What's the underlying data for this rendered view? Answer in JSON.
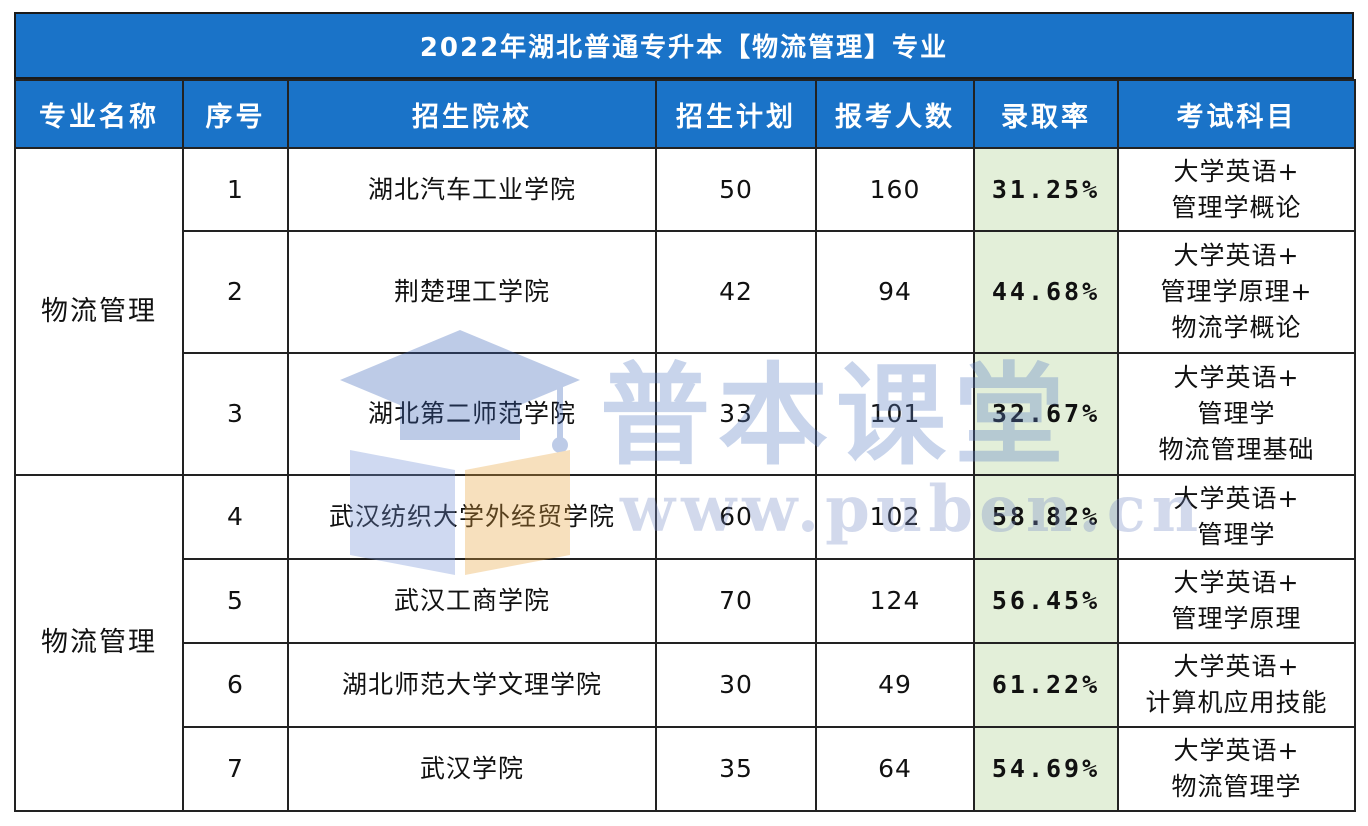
{
  "title": "2022年湖北普通专升本【物流管理】专业",
  "headers": [
    "专业名称",
    "序号",
    "招生院校",
    "招生计划",
    "报考人数",
    "录取率",
    "考试科目"
  ],
  "groups": [
    {
      "major": "物流管理",
      "rows": [
        {
          "no": "1",
          "school": "湖北汽车工业学院",
          "plan": "50",
          "applicants": "160",
          "rate": "31.25%",
          "subjects": [
            "大学英语+",
            "管理学概论"
          ]
        },
        {
          "no": "2",
          "school": "荆楚理工学院",
          "plan": "42",
          "applicants": "94",
          "rate": "44.68%",
          "subjects": [
            "大学英语+",
            "管理学原理+",
            "物流学概论"
          ]
        },
        {
          "no": "3",
          "school": "湖北第二师范学院",
          "plan": "33",
          "applicants": "101",
          "rate": "32.67%",
          "subjects": [
            "大学英语+",
            "管理学",
            "物流管理基础"
          ]
        }
      ]
    },
    {
      "major": "物流管理",
      "rows": [
        {
          "no": "4",
          "school": "武汉纺织大学外经贸学院",
          "plan": "60",
          "applicants": "102",
          "rate": "58.82%",
          "subjects": [
            "大学英语+",
            "管理学"
          ]
        },
        {
          "no": "5",
          "school": "武汉工商学院",
          "plan": "70",
          "applicants": "124",
          "rate": "56.45%",
          "subjects": [
            "大学英语+",
            "管理学原理"
          ]
        },
        {
          "no": "6",
          "school": "湖北师范大学文理学院",
          "plan": "30",
          "applicants": "49",
          "rate": "61.22%",
          "subjects": [
            "大学英语+",
            "计算机应用技能"
          ]
        },
        {
          "no": "7",
          "school": "武汉学院",
          "plan": "35",
          "applicants": "64",
          "rate": "54.69%",
          "subjects": [
            "大学英语+",
            "物流管理学"
          ]
        }
      ]
    }
  ],
  "watermark": {
    "name": "普本课堂",
    "url": "www.puben.cn"
  },
  "colors": {
    "header_bg": "#1a73c8",
    "rate_bg": "#e3efd9"
  }
}
